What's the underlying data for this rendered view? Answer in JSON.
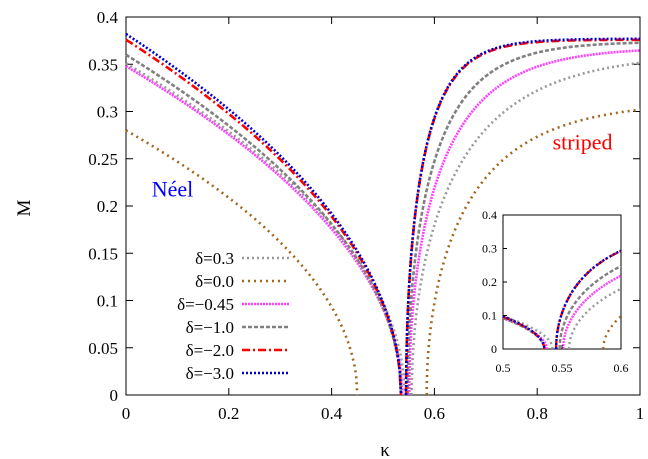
{
  "chart_data": {
    "type": "line",
    "xlabel": "κ",
    "ylabel": "M",
    "xlim": [
      0,
      1
    ],
    "ylim": [
      0,
      0.4
    ],
    "xticks": [
      "0",
      "0.2",
      "0.4",
      "0.6",
      "0.8",
      "1"
    ],
    "yticks": [
      "0",
      "0.05",
      "0.1",
      "0.15",
      "0.2",
      "0.25",
      "0.3",
      "0.35",
      "0.4"
    ],
    "grid": false,
    "legend_position": "bottom-left",
    "annotations": [
      {
        "text": "Néel",
        "x": 0.05,
        "y": 0.21,
        "color": "#0000ff"
      },
      {
        "text": "striped",
        "x": 0.83,
        "y": 0.26,
        "color": "#ff0000"
      }
    ],
    "series": [
      {
        "name": "δ=0.3",
        "color": "#999999",
        "dash": "2,3",
        "kc1": 0.542,
        "kc2": 0.556,
        "m0": 0.351,
        "m1": 0.362,
        "sat": 0.35
      },
      {
        "name": "δ=0.0",
        "color": "#a0671e",
        "dash": "2,4",
        "kc1": 0.45,
        "kc2": 0.585,
        "m0": 0.28,
        "m1": 0.311,
        "sat": 0.35
      },
      {
        "name": "δ=−0.45",
        "color": "#ff40ff",
        "dash": "2,1",
        "kc1": 0.537,
        "kc2": 0.551,
        "m0": 0.348,
        "m1": 0.368,
        "sat": 0.25
      },
      {
        "name": "δ=−1.0",
        "color": "#808080",
        "dash": "4,2",
        "kc1": 0.535,
        "kc2": 0.548,
        "m0": 0.36,
        "m1": 0.374,
        "sat": 0.2
      },
      {
        "name": "δ=−2.0",
        "color": "#ff0000",
        "dash": "8,3,2,3",
        "kc1": 0.535,
        "kc2": 0.545,
        "m0": 0.376,
        "m1": 0.376,
        "sat": 0.13
      },
      {
        "name": "δ=−3.0",
        "color": "#0000cc",
        "dash": "2,2",
        "kc1": 0.535,
        "kc2": 0.545,
        "m0": 0.382,
        "m1": 0.377,
        "sat": 0.13
      }
    ],
    "inset": {
      "xlim": [
        0.5,
        0.6
      ],
      "ylim": [
        0,
        0.4
      ],
      "xticks": [
        "0.5",
        "0.55",
        "0.6"
      ],
      "yticks": [
        "0",
        "0.1",
        "0.2",
        "0.3",
        "0.4"
      ]
    }
  }
}
